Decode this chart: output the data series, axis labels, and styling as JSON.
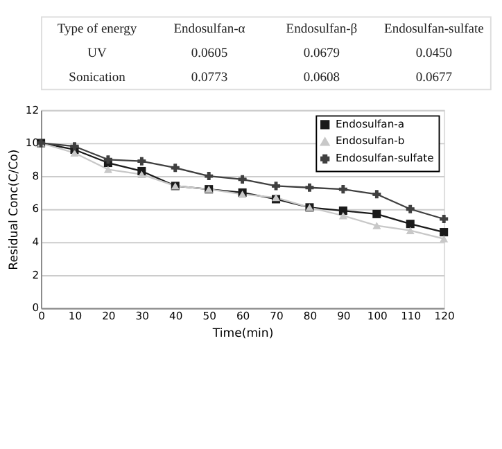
{
  "chart_data": [
    {
      "type": "other",
      "annotations": [
        "Type of energy",
        "Endosulfan-α",
        "Endosulfan-β",
        "Endosulfan-sulfate",
        "UV",
        "0.0605",
        "0.0679",
        "0.0450",
        "Sonication",
        "0.0773",
        "0.0608",
        "0.0677"
      ]
    },
    {
      "type": "line",
      "xlabel": "Time(min)",
      "ylabel": "Residual Conc(C/Co)",
      "x": [
        0,
        10,
        20,
        30,
        40,
        50,
        60,
        70,
        80,
        90,
        100,
        110,
        120
      ],
      "xlim": [
        0,
        120
      ],
      "xticks": [
        0,
        10,
        20,
        30,
        40,
        50,
        60,
        70,
        80,
        90,
        100,
        110,
        120
      ],
      "ylim": [
        0,
        12
      ],
      "yticks": [
        0,
        2,
        4,
        6,
        8,
        10,
        12
      ],
      "grid": "y",
      "legend": "top right",
      "series": [
        {
          "name": "Endosulfan-a",
          "color": "#1a1a1a",
          "marker": "square",
          "values": [
            10,
            9.6,
            8.8,
            8.3,
            7.4,
            7.2,
            7.0,
            6.6,
            6.1,
            5.9,
            5.7,
            5.1,
            4.6
          ]
        },
        {
          "name": "Endosulfan-b",
          "color": "#c8c8c8",
          "marker": "triangle",
          "values": [
            10,
            9.4,
            8.4,
            8.1,
            7.4,
            7.2,
            6.9,
            6.7,
            6.1,
            5.6,
            5.0,
            4.7,
            4.2
          ]
        },
        {
          "name": "Endosulfan-sulfate",
          "color": "#404040",
          "marker": "cross",
          "values": [
            10,
            9.8,
            9.0,
            8.9,
            8.5,
            8.0,
            7.8,
            7.4,
            7.3,
            7.2,
            6.9,
            6.0,
            5.4
          ]
        }
      ]
    }
  ]
}
